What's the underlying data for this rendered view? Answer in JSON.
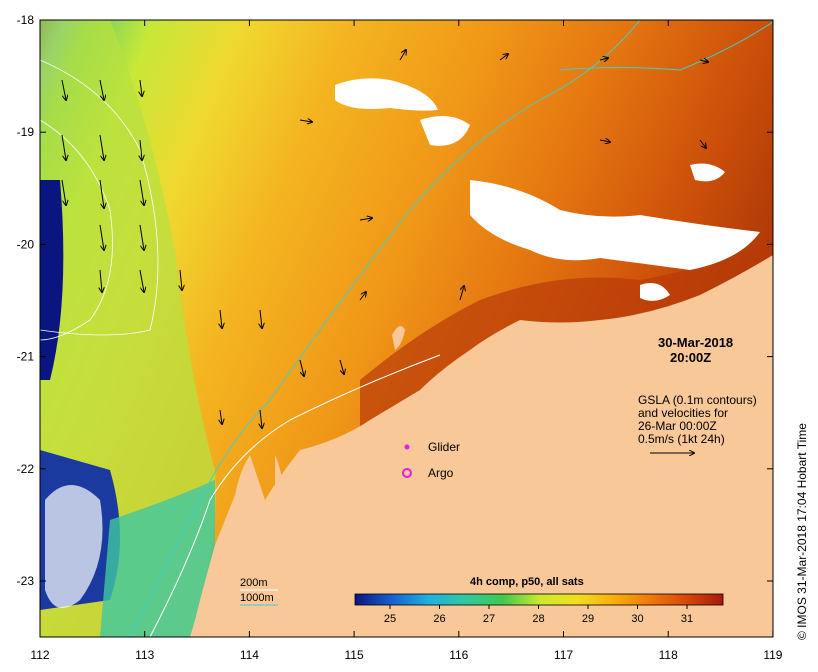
{
  "map": {
    "timestamp_date": "30-Mar-2018",
    "timestamp_time": "20:00Z",
    "gsla_lines": [
      "GSLA (0.1m contours)",
      "and velocities for",
      "26-Mar 00:00Z",
      "0.5m/s (1kt 24h)"
    ],
    "legend": {
      "glider": "Glider",
      "argo": "Argo",
      "glider_color": "#e020e0",
      "argo_color": "#e020e0"
    },
    "depth_legend": {
      "label_200m": "200m",
      "label_1000m": "1000m",
      "color_200m": "#ffffff",
      "color_1000m": "#40d0c8"
    },
    "colorbar": {
      "title": "4h comp, p50, all sats",
      "ticks": [
        "25",
        "26",
        "27",
        "28",
        "29",
        "30",
        "31"
      ],
      "stops": [
        "#0b1580",
        "#1460d0",
        "#20b0e0",
        "#30c8a0",
        "#40c850",
        "#c8e830",
        "#f0e020",
        "#f8b010",
        "#f07a08",
        "#d84808",
        "#a81a0a"
      ]
    },
    "credit": "© IMOS 31-Mar-2018 17:04 Hobart Time",
    "longitude_ticks": [
      "112",
      "113",
      "114",
      "115",
      "116",
      "117",
      "118",
      "119"
    ],
    "latitude_ticks": [
      "-18",
      "-19",
      "-20",
      "-21",
      "-22",
      "-23"
    ],
    "land_color": "#f8c898",
    "no_data_color": "#ffffff"
  }
}
